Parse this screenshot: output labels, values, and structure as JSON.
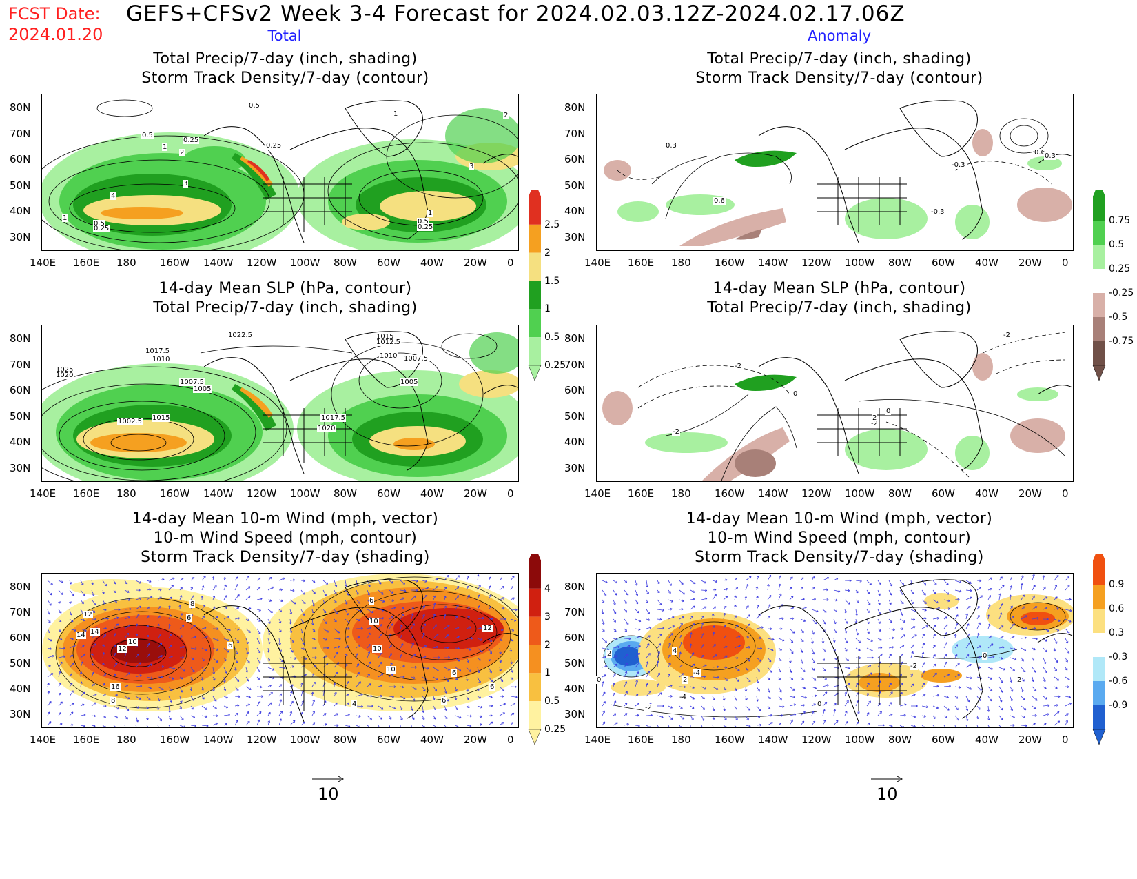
{
  "header": {
    "fcst_label": "FCST Date:",
    "fcst_date": "2024.01.20",
    "title": "GEFS+CFSv2 Week 3-4 Forecast for 2024.02.03.12Z-2024.02.17.06Z",
    "col_total": "Total",
    "col_anomaly": "Anomaly"
  },
  "panels": {
    "r1": {
      "line1": "Total Precip/7-day (inch, shading)",
      "line2": "Storm Track Density/7-day (contour)"
    },
    "r2": {
      "line1": "14-day Mean SLP (hPa, contour)",
      "line2": "Total Precip/7-day (inch, shading)"
    },
    "r3": {
      "line1": "14-day Mean 10-m Wind (mph, vector)",
      "line2": "10-m Wind Speed (mph, contour)",
      "line3": "Storm Track Density/7-day (shading)"
    }
  },
  "axes": {
    "lon": [
      "140E",
      "160E",
      "180",
      "160W",
      "140W",
      "120W",
      "100W",
      "80W",
      "60W",
      "40W",
      "20W",
      "0"
    ],
    "lat": [
      "80N",
      "70N",
      "60N",
      "50N",
      "40N",
      "30N"
    ]
  },
  "colorbars": {
    "precip_total": {
      "labels": [
        "2.5",
        "2",
        "1.5",
        "1",
        "0.5",
        "0.25"
      ],
      "colors": [
        "#e03020",
        "#f5a020",
        "#f5e080",
        "#20a020",
        "#50d050",
        "#a8f0a0"
      ]
    },
    "precip_anom": {
      "labels": [
        "0.75",
        "0.5",
        "0.25",
        "-0.25",
        "-0.5",
        "-0.75"
      ],
      "colors": [
        "#20a020",
        "#50d050",
        "#a8f0a0",
        "#ffffff",
        "#d8b0a8",
        "#a88078",
        "#705048"
      ]
    },
    "storm_total": {
      "labels": [
        "4",
        "3",
        "2",
        "1",
        "0.5",
        "0.25"
      ],
      "colors": [
        "#8c0a0a",
        "#d02010",
        "#ee5a1a",
        "#f59020",
        "#f8c040",
        "#fff2a0"
      ]
    },
    "storm_anom": {
      "labels": [
        "0.9",
        "0.6",
        "0.3",
        "-0.3",
        "-0.6",
        "-0.9"
      ],
      "colors": [
        "#f05010",
        "#f5a020",
        "#fce080",
        "#ffffff",
        "#b0e8f8",
        "#5aaaf0",
        "#2060d0"
      ]
    }
  },
  "contour_labels": {
    "p1": [
      "0.5",
      "0.25",
      "1",
      "2",
      "3",
      "4",
      "1",
      "0.5",
      "0.25",
      "0.5",
      "0.25",
      "1",
      "2",
      "3",
      "1",
      "0.5",
      "0.25"
    ],
    "p2": [
      "0.3",
      "0.6",
      "0.6",
      "0.3",
      "-0.3",
      "-0.3"
    ],
    "p3": [
      "1022.5",
      "1017.5",
      "1015",
      "1010",
      "1007.5",
      "1005",
      "1025",
      "1020",
      "1002.5",
      "1015",
      "1012.5",
      "1010",
      "1007.5",
      "1005",
      "1017.5",
      "1020"
    ],
    "p4": [
      "-2",
      "-2",
      "-2",
      "0",
      "2",
      "-2",
      "0"
    ],
    "p5": [
      "8",
      "6",
      "6",
      "12",
      "14",
      "14",
      "10",
      "12",
      "16",
      "8",
      "6",
      "10",
      "10",
      "10",
      "6",
      "6",
      "6",
      "12",
      "4"
    ],
    "p6": [
      "2",
      "4",
      "2",
      "0",
      "0",
      "-2",
      "0",
      "2",
      "-4",
      "-2",
      "-4"
    ]
  },
  "vector_scale": {
    "left": "10",
    "right": "10"
  }
}
